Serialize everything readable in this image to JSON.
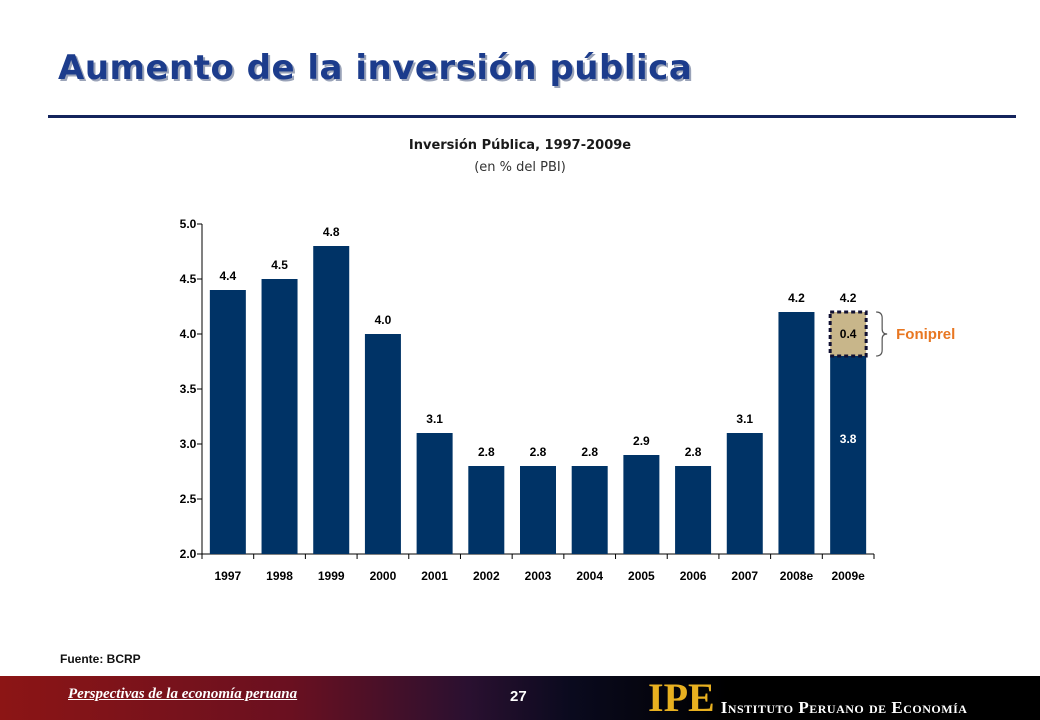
{
  "slide": {
    "title": "Aumento de la inversión pública",
    "source": "Fuente: BCRP"
  },
  "footer": {
    "left_text": "Perspectivas de la economía peruana",
    "page_number": "27",
    "logo_mark": "IPE",
    "logo_name": "Instituto Peruano de Economía"
  },
  "chart_data": {
    "type": "bar",
    "title": "Inversión Pública, 1997-2009e",
    "subtitle": "(en % del PBI)",
    "categories": [
      "1997",
      "1998",
      "1999",
      "2000",
      "2001",
      "2002",
      "2003",
      "2004",
      "2005",
      "2006",
      "2007",
      "2008e",
      "2009e"
    ],
    "values": [
      4.4,
      4.5,
      4.8,
      4.0,
      3.1,
      2.8,
      2.8,
      2.8,
      2.9,
      2.8,
      3.1,
      4.2,
      4.2
    ],
    "value_labels": [
      "4.4",
      "4.5",
      "4.8",
      "4.0",
      "3.1",
      "2.8",
      "2.8",
      "2.8",
      "2.9",
      "2.8",
      "3.1",
      "4.2",
      "4.2"
    ],
    "stacked_2009e": {
      "base_value": 3.8,
      "base_label": "3.8",
      "top_value": 0.4,
      "top_label": "0.4",
      "top_annotation": "Foniprel"
    },
    "ylim": [
      2.0,
      5.0
    ],
    "yticks": [
      "2.0",
      "2.5",
      "3.0",
      "3.5",
      "4.0",
      "4.5",
      "5.0"
    ],
    "grid": false,
    "colors": {
      "bar": "#003366",
      "segment": "#c8b68a",
      "annotation": "#e87722"
    }
  }
}
